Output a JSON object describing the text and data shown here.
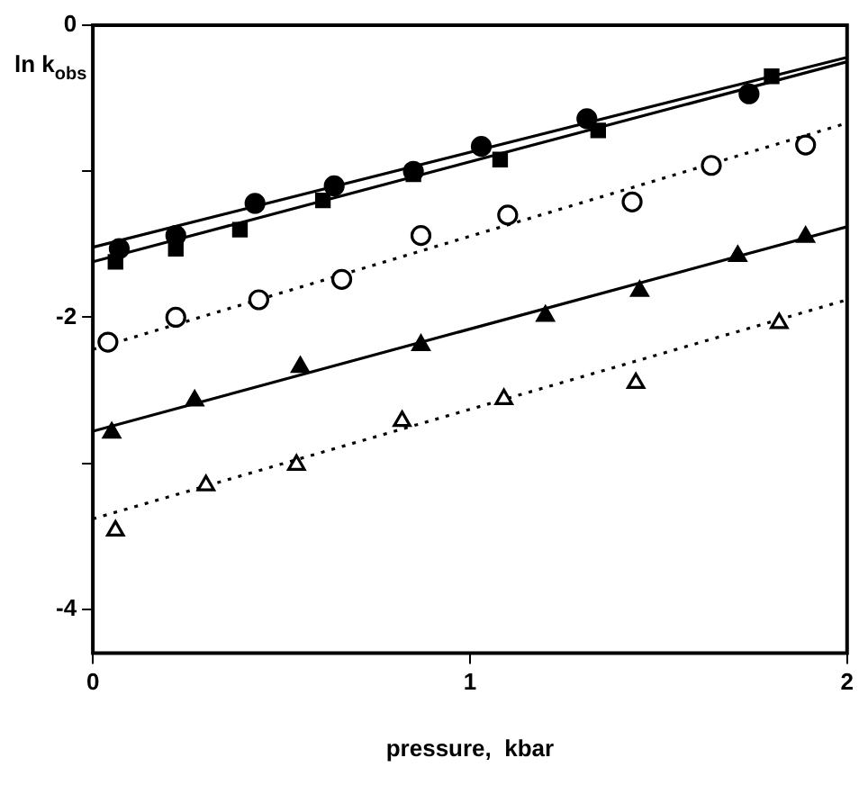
{
  "chart_data": {
    "type": "scatter",
    "xlabel": "pressure,  kbar",
    "ylabel": "ln k$_{obs}$",
    "xlim": [
      0,
      2
    ],
    "xticks": [
      0,
      1,
      2
    ],
    "ylim": [
      -4.3,
      0
    ],
    "yticks": [
      0,
      {
        "value": -1,
        "label": null
      },
      -2,
      {
        "value": -3,
        "label": null
      },
      -4
    ],
    "grid": false,
    "legend": false,
    "series": [
      {
        "marker": "circle",
        "color": "#000000",
        "x": [
          0.07,
          0.22,
          0.43,
          0.64,
          0.85,
          1.03,
          1.31,
          1.74
        ],
        "values": [
          -1.53,
          -1.44,
          -1.22,
          -1.1,
          -1.0,
          -0.83,
          -0.64,
          -0.47
        ]
      },
      {
        "marker": "square",
        "color": "#000000",
        "x": [
          0.06,
          0.22,
          0.39,
          0.61,
          0.85,
          1.08,
          1.34,
          1.8
        ],
        "values": [
          -1.62,
          -1.53,
          -1.4,
          -1.2,
          -1.02,
          -0.92,
          -0.72,
          -0.35
        ]
      },
      {
        "marker": "circle",
        "color": "#ffffff",
        "x": [
          0.04,
          0.22,
          0.44,
          0.66,
          0.87,
          1.1,
          1.43,
          1.64,
          1.89
        ],
        "values": [
          -2.17,
          -2.0,
          -1.88,
          -1.74,
          -1.44,
          -1.3,
          -1.21,
          -0.96,
          -0.82
        ]
      },
      {
        "marker": "triangle",
        "color": "#000000",
        "x": [
          0.05,
          0.27,
          0.55,
          0.87,
          1.2,
          1.45,
          1.71,
          1.89
        ],
        "values": [
          -2.79,
          -2.57,
          -2.34,
          -2.19,
          -1.99,
          -1.82,
          -1.58,
          -1.45
        ]
      },
      {
        "marker": "triangle",
        "color": "#ffffff",
        "x": [
          0.06,
          0.3,
          0.54,
          0.82,
          1.09,
          1.44,
          1.82
        ],
        "values": [
          -3.46,
          -3.15,
          -3.01,
          -2.71,
          -2.56,
          -2.45,
          -2.04
        ]
      },
      {
        "type": "line",
        "line_style": "solid",
        "color": "#000000",
        "x": [
          0,
          2
        ],
        "values": [
          -1.52,
          -0.22
        ]
      },
      {
        "type": "line",
        "line_style": "solid",
        "color": "#000000",
        "x": [
          0,
          2
        ],
        "values": [
          -1.62,
          -0.25
        ]
      },
      {
        "type": "line",
        "line_style": "dotted",
        "color": "#000000",
        "x": [
          0,
          2
        ],
        "values": [
          -2.22,
          -0.67
        ]
      },
      {
        "type": "line",
        "line_style": "solid",
        "color": "#000000",
        "x": [
          0,
          2
        ],
        "values": [
          -2.78,
          -1.38
        ]
      },
      {
        "type": "line",
        "line_style": "dotted",
        "color": "#000000",
        "x": [
          0,
          2
        ],
        "values": [
          -3.38,
          -1.88
        ]
      }
    ]
  }
}
